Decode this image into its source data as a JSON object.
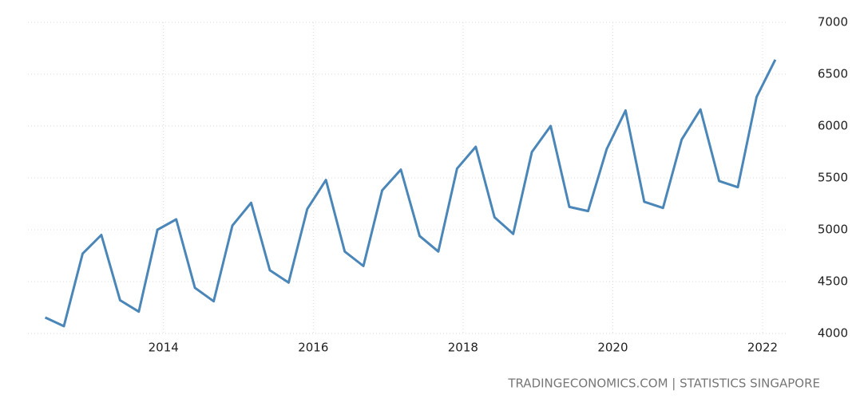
{
  "chart_data": {
    "type": "line",
    "source": "TRADINGECONOMICS.COM | STATISTICS SINGAPORE",
    "x": [
      2012.42,
      2012.67,
      2012.92,
      2013.17,
      2013.42,
      2013.67,
      2013.92,
      2014.17,
      2014.42,
      2014.67,
      2014.92,
      2015.17,
      2015.42,
      2015.67,
      2015.92,
      2016.17,
      2016.42,
      2016.67,
      2016.92,
      2017.17,
      2017.42,
      2017.67,
      2017.92,
      2018.17,
      2018.42,
      2018.67,
      2018.92,
      2019.17,
      2019.42,
      2019.67,
      2019.92,
      2020.17,
      2020.42,
      2020.67,
      2020.92,
      2021.17,
      2021.42,
      2021.67,
      2021.92,
      2022.17
    ],
    "series": [
      {
        "color": "#4a86b8",
        "values": [
          4154,
          4070,
          4770,
          4950,
          4320,
          4210,
          5000,
          5100,
          4440,
          4310,
          5040,
          5260,
          4610,
          4490,
          5200,
          5480,
          4790,
          4650,
          5380,
          5580,
          4940,
          4790,
          5590,
          5800,
          5120,
          4960,
          5750,
          6000,
          5220,
          5180,
          5780,
          6150,
          5270,
          5210,
          5870,
          6160,
          5470,
          5410,
          6280,
          6640
        ]
      }
    ],
    "xlim": [
      2012.19,
      2022.32
    ],
    "xticks": [
      2014,
      2016,
      2018,
      2020,
      2022
    ],
    "ylim": [
      4000,
      7000
    ],
    "yticks": [
      4000,
      4500,
      5000,
      5500,
      6000,
      6500,
      7000
    ],
    "grid": true
  }
}
